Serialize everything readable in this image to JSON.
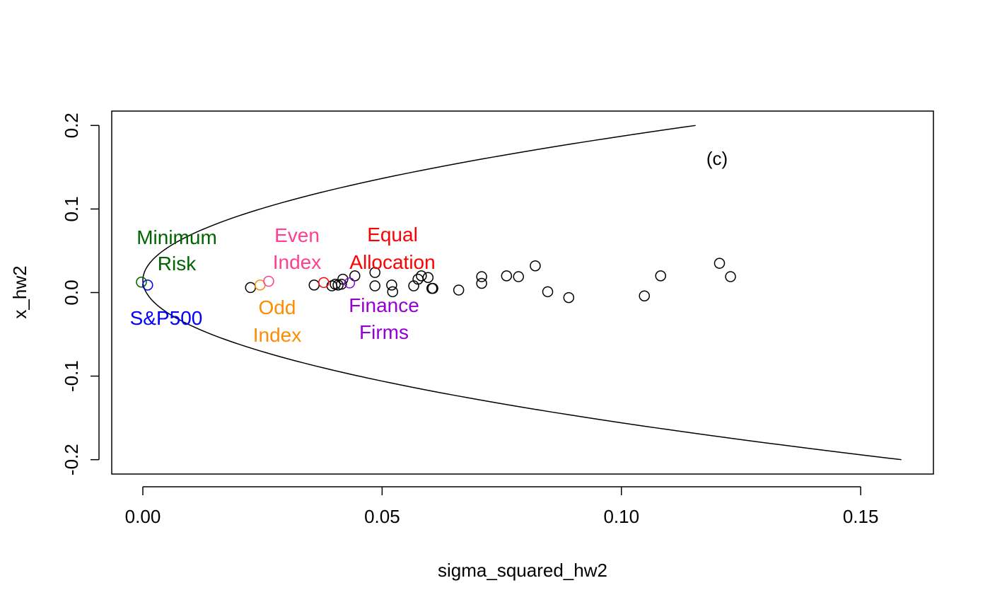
{
  "chart_data": {
    "type": "scatter",
    "xlabel": "sigma_squared_hw2",
    "ylabel": "x_hw2",
    "xlim": [
      -0.0065,
      0.1652
    ],
    "ylim": [
      -0.2172,
      0.2172
    ],
    "xticks": [
      0.0,
      0.05,
      0.1,
      0.15
    ],
    "xtick_labels": [
      "0.00",
      "0.05",
      "0.10",
      "0.15"
    ],
    "yticks": [
      -0.2,
      -0.1,
      0.0,
      0.1,
      0.2
    ],
    "ytick_labels": [
      "-0.2",
      "-0.1",
      "0.0",
      "0.1",
      "0.2"
    ],
    "grid": false,
    "panel_label": "(c)",
    "frontier": {
      "description": "efficient frontier parabola",
      "x_min": 0.0,
      "y_at_min": 0.0145,
      "x_at_top": 0.1155,
      "y_top": 0.2,
      "x_at_bottom": 0.1585,
      "y_bottom": -0.2
    },
    "points": [
      {
        "x": 0.0225,
        "y": 0.006
      },
      {
        "x": 0.0358,
        "y": 0.009
      },
      {
        "x": 0.0395,
        "y": 0.008
      },
      {
        "x": 0.0402,
        "y": 0.01
      },
      {
        "x": 0.0408,
        "y": 0.009
      },
      {
        "x": 0.0415,
        "y": 0.01
      },
      {
        "x": 0.0418,
        "y": 0.016
      },
      {
        "x": 0.0443,
        "y": 0.02
      },
      {
        "x": 0.0485,
        "y": 0.024
      },
      {
        "x": 0.0485,
        "y": 0.008
      },
      {
        "x": 0.052,
        "y": 0.009
      },
      {
        "x": 0.0522,
        "y": 0.001
      },
      {
        "x": 0.0566,
        "y": 0.008
      },
      {
        "x": 0.0575,
        "y": 0.016
      },
      {
        "x": 0.0582,
        "y": 0.02
      },
      {
        "x": 0.0596,
        "y": 0.018
      },
      {
        "x": 0.0604,
        "y": 0.005
      },
      {
        "x": 0.0606,
        "y": 0.005
      },
      {
        "x": 0.066,
        "y": 0.003
      },
      {
        "x": 0.0708,
        "y": 0.019
      },
      {
        "x": 0.0708,
        "y": 0.011
      },
      {
        "x": 0.076,
        "y": 0.02
      },
      {
        "x": 0.0785,
        "y": 0.019
      },
      {
        "x": 0.082,
        "y": 0.032
      },
      {
        "x": 0.0846,
        "y": 0.001
      },
      {
        "x": 0.089,
        "y": -0.006
      },
      {
        "x": 0.1048,
        "y": -0.004
      },
      {
        "x": 0.1082,
        "y": 0.02
      },
      {
        "x": 0.1205,
        "y": 0.035
      },
      {
        "x": 0.1228,
        "y": 0.019
      }
    ],
    "highlighted": [
      {
        "name": "Minimum Risk",
        "x": -0.0003,
        "y": 0.0125,
        "color": "#006400",
        "label_lines": [
          "Minimum",
          "Risk"
        ]
      },
      {
        "name": "S&P500",
        "x": 0.001,
        "y": 0.009,
        "color": "#0000FF",
        "label_lines": [
          "S&P500"
        ]
      },
      {
        "name": "Odd Index",
        "x": 0.0245,
        "y": 0.009,
        "color": "#FF8C00",
        "label_lines": [
          "Odd",
          "Index"
        ]
      },
      {
        "name": "Even Index",
        "x": 0.0263,
        "y": 0.0135,
        "color": "#FF3F8F",
        "label_lines": [
          "Even",
          "Index"
        ]
      },
      {
        "name": "Equal Allocation",
        "x": 0.0378,
        "y": 0.012,
        "color": "#FF0000",
        "label_lines": [
          "Equal",
          "Allocation"
        ]
      },
      {
        "name": "Finance Firms",
        "x": 0.0432,
        "y": 0.0115,
        "color": "#9400D3",
        "label_lines": [
          "Finance",
          "Firms"
        ]
      }
    ]
  }
}
